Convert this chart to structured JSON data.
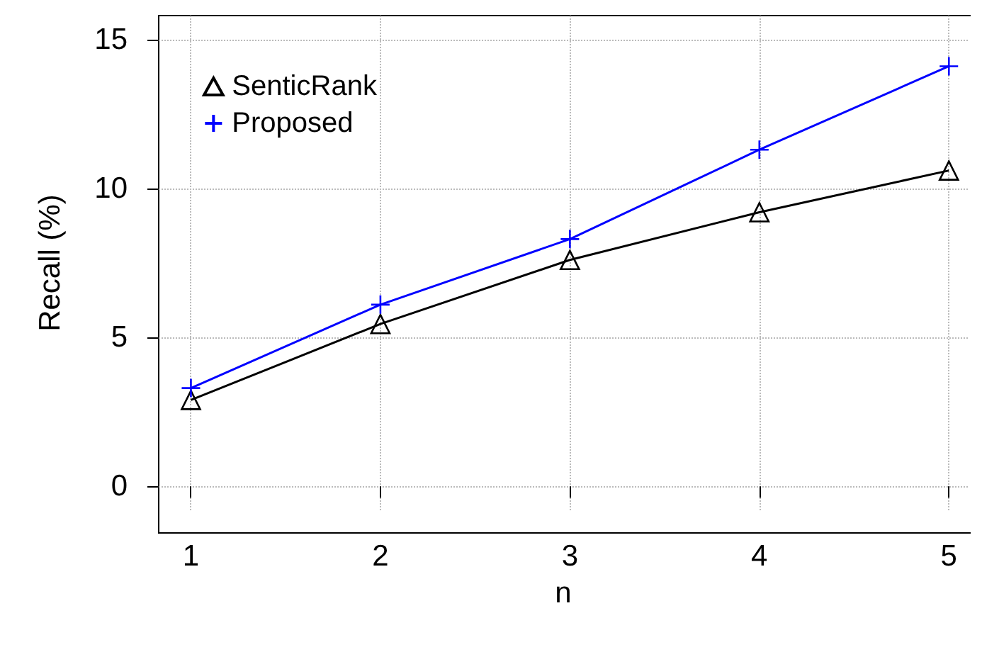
{
  "chart_data": {
    "type": "line",
    "xlabel": "n",
    "ylabel": "Recall (%)",
    "x": [
      1,
      2,
      3,
      4,
      5
    ],
    "xlim": [
      0.83,
      5.1
    ],
    "xticks": [
      1,
      2,
      3,
      4,
      5
    ],
    "ylim": [
      -0.8,
      15.8
    ],
    "yticks": [
      0,
      5,
      10,
      15
    ],
    "grid": true,
    "legend": "top left",
    "line_style": "solid",
    "series": [
      {
        "name": "SenticRank",
        "color": "#000000",
        "marker": "triangle",
        "values": [
          2.9,
          5.45,
          7.6,
          9.2,
          10.6
        ]
      },
      {
        "name": "Proposed",
        "color": "#0000ff",
        "marker": "cross",
        "values": [
          3.3,
          6.1,
          8.3,
          11.3,
          14.1
        ]
      }
    ]
  }
}
